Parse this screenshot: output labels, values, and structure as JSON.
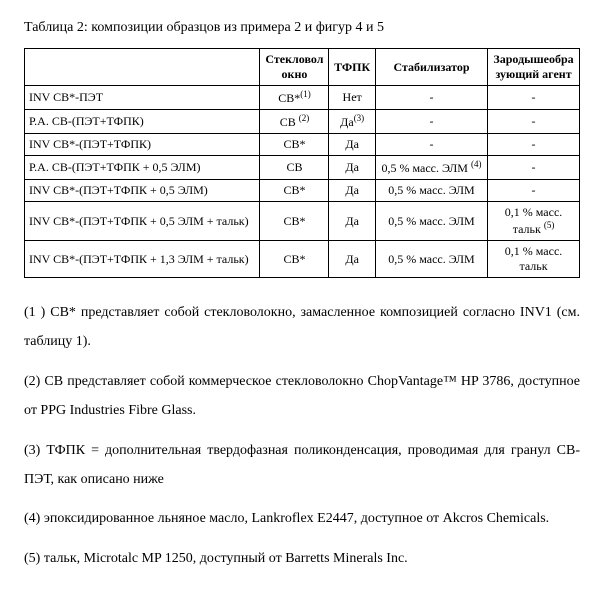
{
  "title": "Таблица 2: композиции образцов из примера 2 и фигур 4 и 5",
  "headers": {
    "c1": "",
    "c2_line1": "Стекловол",
    "c2_line2": "окно",
    "c3": "ТФПК",
    "c4": "Стабилизатор",
    "c5_line1": "Зародышеобра",
    "c5_line2": "зующий агент"
  },
  "rows": [
    {
      "label": "INV СВ*-ПЭТ",
      "gf": "СВ*",
      "gf_sup": "(1)",
      "tp": "Нет",
      "stab": "-",
      "nuc": "-"
    },
    {
      "label": "Р.А. СВ-(ПЭТ+ТФПК)",
      "gf": "СВ",
      "gf_sup": "(2)",
      "tp": "Да",
      "tp_sup": "(3)",
      "stab": "-",
      "nuc": "-"
    },
    {
      "label": "INV СВ*-(ПЭТ+ТФПК)",
      "gf": "СВ*",
      "tp": "Да",
      "stab": "-",
      "nuc": "-"
    },
    {
      "label": "Р.А. СВ-(ПЭТ+ТФПК + 0,5 ЭЛМ)",
      "gf": "СВ",
      "tp": "Да",
      "stab": "0,5 % масс. ЭЛМ",
      "stab_sup": "(4)",
      "nuc": "-"
    },
    {
      "label": "INV СВ*-(ПЭТ+ТФПК + 0,5 ЭЛМ)",
      "gf": "СВ*",
      "tp": "Да",
      "stab": "0,5 % масс. ЭЛМ",
      "nuc": "-"
    },
    {
      "label": "INV СВ*-(ПЭТ+ТФПК + 0,5 ЭЛМ + тальк)",
      "gf": "СВ*",
      "tp": "Да",
      "stab": "0,5 % масс. ЭЛМ",
      "nuc_line1": "0,1 % масс.",
      "nuc_line2": "тальк",
      "nuc_sup": "(5)"
    },
    {
      "label": "INV СВ*-(ПЭТ+ТФПК + 1,3 ЭЛМ + тальк)",
      "gf": "СВ*",
      "tp": "Да",
      "stab": "0,5 % масс. ЭЛМ",
      "nuc_line1": "0,1 % масс.",
      "nuc_line2": "тальк"
    }
  ],
  "notes": {
    "n1": "(1 ) СВ* представляет собой стекловолокно, замасленное композицией согласно INV1 (см. таблицу 1).",
    "n2": "(2) СВ представляет собой коммерческое стекловолокно ChopVantage™ HP 3786, доступное от PPG Industries Fibre Glass.",
    "n3": "(3) ТФПК = дополнительная твердофазная поликонденсация, проводимая для гранул СВ-ПЭТ, как описано ниже",
    "n4": "(4) эпоксидированное льняное масло, Lankroflex E2447, доступное от Akcros Chemicals.",
    "n5": "(5) тальк, Microtalc MP 1250, доступный от Barretts Minerals Inc."
  }
}
